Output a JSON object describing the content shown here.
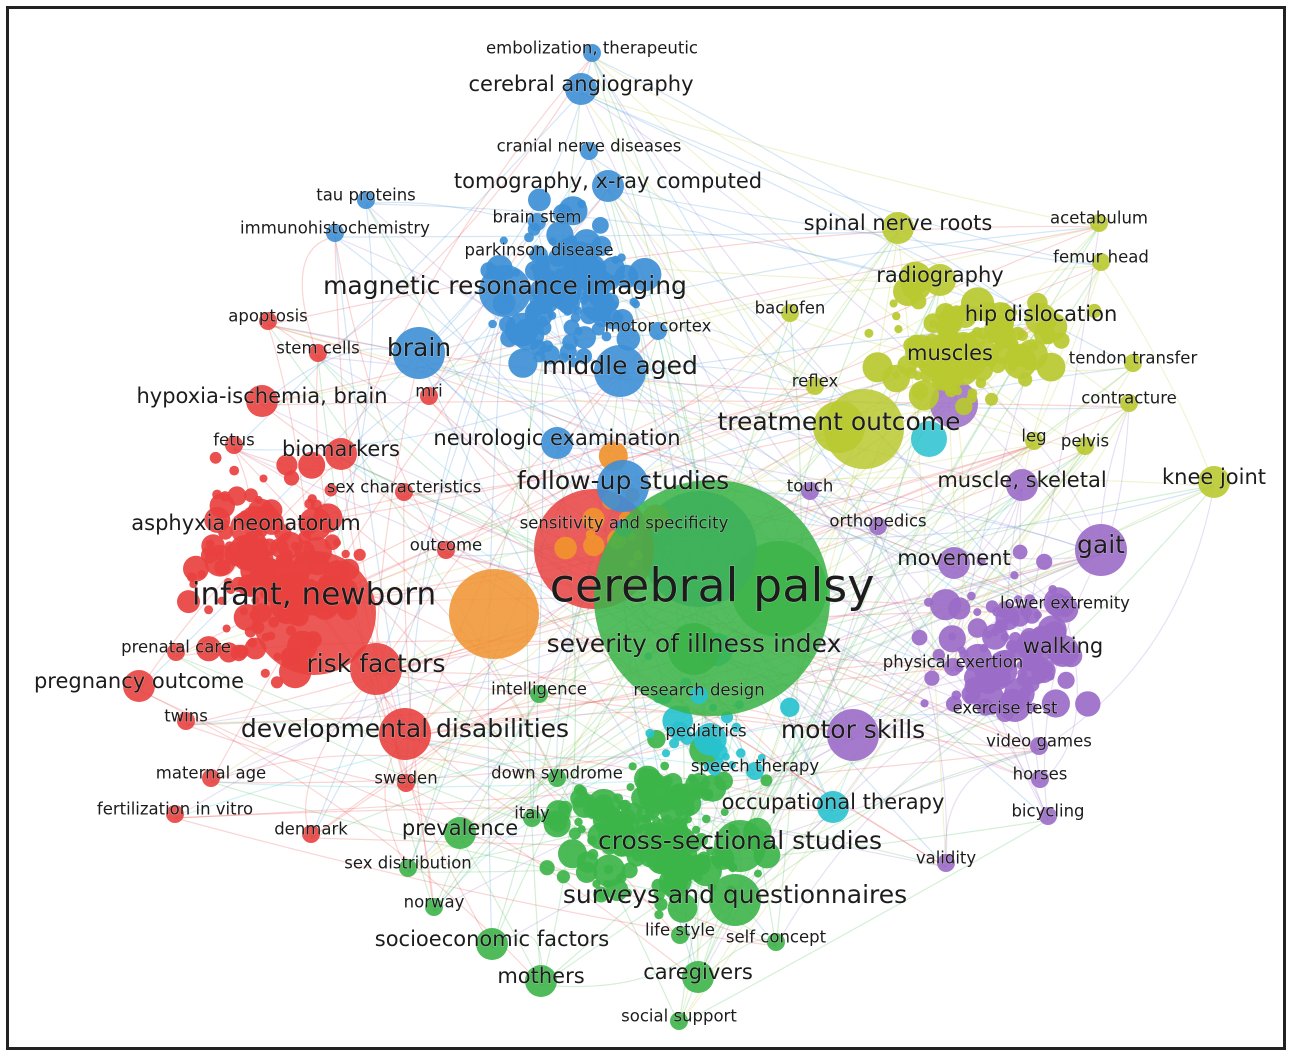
{
  "colors": {
    "red": "#e8413f",
    "blue": "#3d8fd6",
    "green": "#3cb449",
    "yellow": "#b9c930",
    "purple": "#9b6cc8",
    "cyan": "#28c2cf",
    "orange": "#f0922e"
  },
  "keywords": [
    {
      "text": "embolization, therapeutic",
      "cluster": "blue",
      "weight": 1
    },
    {
      "text": "cerebral angiography",
      "cluster": "blue",
      "weight": 2
    },
    {
      "text": "cranial nerve diseases",
      "cluster": "blue",
      "weight": 1
    },
    {
      "text": "tomography, x-ray computed",
      "cluster": "blue",
      "weight": 2
    },
    {
      "text": "tau proteins",
      "cluster": "blue",
      "weight": 1
    },
    {
      "text": "brain stem",
      "cluster": "blue",
      "weight": 1
    },
    {
      "text": "immunohistochemistry",
      "cluster": "blue",
      "weight": 1
    },
    {
      "text": "parkinson disease",
      "cluster": "blue",
      "weight": 1
    },
    {
      "text": "magnetic resonance imaging",
      "cluster": "blue",
      "weight": 3
    },
    {
      "text": "motor cortex",
      "cluster": "blue",
      "weight": 1
    },
    {
      "text": "brain",
      "cluster": "blue",
      "weight": 3
    },
    {
      "text": "middle aged",
      "cluster": "blue",
      "weight": 3
    },
    {
      "text": "neurologic examination",
      "cluster": "blue",
      "weight": 2
    },
    {
      "text": "follow-up studies",
      "cluster": "blue",
      "weight": 3
    },
    {
      "text": "sensitivity and specificity",
      "cluster": "blue",
      "weight": 1
    },
    {
      "text": "apoptosis",
      "cluster": "red",
      "weight": 1
    },
    {
      "text": "stem cells",
      "cluster": "red",
      "weight": 1
    },
    {
      "text": "hypoxia-ischemia, brain",
      "cluster": "red",
      "weight": 2
    },
    {
      "text": "mri",
      "cluster": "red",
      "weight": 1
    },
    {
      "text": "fetus",
      "cluster": "red",
      "weight": 1
    },
    {
      "text": "biomarkers",
      "cluster": "red",
      "weight": 2
    },
    {
      "text": "sex characteristics",
      "cluster": "red",
      "weight": 1
    },
    {
      "text": "asphyxia neonatorum",
      "cluster": "red",
      "weight": 2
    },
    {
      "text": "outcome",
      "cluster": "red",
      "weight": 1
    },
    {
      "text": "infant, newborn",
      "cluster": "red",
      "weight": 4
    },
    {
      "text": "prenatal care",
      "cluster": "red",
      "weight": 1
    },
    {
      "text": "risk factors",
      "cluster": "red",
      "weight": 3
    },
    {
      "text": "pregnancy outcome",
      "cluster": "red",
      "weight": 2
    },
    {
      "text": "twins",
      "cluster": "red",
      "weight": 1
    },
    {
      "text": "developmental disabilities",
      "cluster": "red",
      "weight": 3
    },
    {
      "text": "maternal age",
      "cluster": "red",
      "weight": 1
    },
    {
      "text": "fertilization in vitro",
      "cluster": "red",
      "weight": 1
    },
    {
      "text": "denmark",
      "cluster": "red",
      "weight": 1
    },
    {
      "text": "sweden",
      "cluster": "red",
      "weight": 1
    },
    {
      "text": "cerebral palsy",
      "cluster": "green",
      "weight": 5
    },
    {
      "text": "severity of illness index",
      "cluster": "green",
      "weight": 3
    },
    {
      "text": "intelligence",
      "cluster": "green",
      "weight": 1
    },
    {
      "text": "research design",
      "cluster": "cyan",
      "weight": 1
    },
    {
      "text": "pediatrics",
      "cluster": "cyan",
      "weight": 1
    },
    {
      "text": "down syndrome",
      "cluster": "green",
      "weight": 1
    },
    {
      "text": "speech therapy",
      "cluster": "cyan",
      "weight": 1
    },
    {
      "text": "occupational therapy",
      "cluster": "cyan",
      "weight": 2
    },
    {
      "text": "prevalence",
      "cluster": "green",
      "weight": 2
    },
    {
      "text": "italy",
      "cluster": "green",
      "weight": 1
    },
    {
      "text": "cross-sectional studies",
      "cluster": "green",
      "weight": 3
    },
    {
      "text": "sex distribution",
      "cluster": "green",
      "weight": 1
    },
    {
      "text": "norway",
      "cluster": "green",
      "weight": 1
    },
    {
      "text": "surveys and questionnaires",
      "cluster": "green",
      "weight": 3
    },
    {
      "text": "socioeconomic factors",
      "cluster": "green",
      "weight": 2
    },
    {
      "text": "life style",
      "cluster": "green",
      "weight": 1
    },
    {
      "text": "self concept",
      "cluster": "green",
      "weight": 1
    },
    {
      "text": "mothers",
      "cluster": "green",
      "weight": 2
    },
    {
      "text": "caregivers",
      "cluster": "green",
      "weight": 2
    },
    {
      "text": "social support",
      "cluster": "green",
      "weight": 1
    },
    {
      "text": "spinal nerve roots",
      "cluster": "yellow",
      "weight": 2
    },
    {
      "text": "acetabulum",
      "cluster": "yellow",
      "weight": 1
    },
    {
      "text": "femur head",
      "cluster": "yellow",
      "weight": 1
    },
    {
      "text": "radiography",
      "cluster": "yellow",
      "weight": 2
    },
    {
      "text": "baclofen",
      "cluster": "yellow",
      "weight": 1
    },
    {
      "text": "hip dislocation",
      "cluster": "yellow",
      "weight": 2
    },
    {
      "text": "muscles",
      "cluster": "yellow",
      "weight": 2
    },
    {
      "text": "tendon transfer",
      "cluster": "yellow",
      "weight": 1
    },
    {
      "text": "reflex",
      "cluster": "yellow",
      "weight": 1
    },
    {
      "text": "contracture",
      "cluster": "yellow",
      "weight": 1
    },
    {
      "text": "treatment outcome",
      "cluster": "yellow",
      "weight": 3
    },
    {
      "text": "leg",
      "cluster": "yellow",
      "weight": 1
    },
    {
      "text": "pelvis",
      "cluster": "yellow",
      "weight": 1
    },
    {
      "text": "knee joint",
      "cluster": "yellow",
      "weight": 2
    },
    {
      "text": "muscle, skeletal",
      "cluster": "purple",
      "weight": 2
    },
    {
      "text": "touch",
      "cluster": "purple",
      "weight": 1
    },
    {
      "text": "orthopedics",
      "cluster": "purple",
      "weight": 1
    },
    {
      "text": "gait",
      "cluster": "purple",
      "weight": 3
    },
    {
      "text": "movement",
      "cluster": "purple",
      "weight": 2
    },
    {
      "text": "lower extremity",
      "cluster": "purple",
      "weight": 1
    },
    {
      "text": "walking",
      "cluster": "purple",
      "weight": 2
    },
    {
      "text": "physical exertion",
      "cluster": "purple",
      "weight": 1
    },
    {
      "text": "exercise test",
      "cluster": "purple",
      "weight": 1
    },
    {
      "text": "motor skills",
      "cluster": "purple",
      "weight": 3
    },
    {
      "text": "video games",
      "cluster": "purple",
      "weight": 1
    },
    {
      "text": "horses",
      "cluster": "purple",
      "weight": 1
    },
    {
      "text": "bicycling",
      "cluster": "purple",
      "weight": 1
    },
    {
      "text": "validity",
      "cluster": "purple",
      "weight": 1
    }
  ]
}
